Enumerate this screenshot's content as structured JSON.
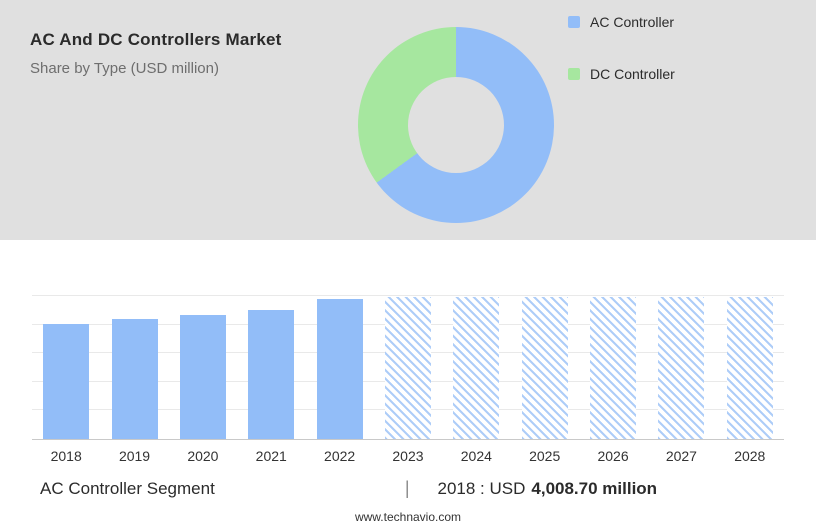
{
  "header": {
    "title": "AC And DC Controllers Market",
    "subtitle": "Share by Type (USD million)"
  },
  "legend": {
    "items": [
      {
        "label": "AC Controller",
        "color": "#92bdf8"
      },
      {
        "label": "DC Controller",
        "color": "#a6e79f"
      }
    ]
  },
  "chart_data": [
    {
      "type": "pie",
      "title": "Share by Type (USD million)",
      "labels": [
        "AC Controller",
        "DC Controller"
      ],
      "values": [
        65,
        35
      ],
      "colors": [
        "#92bdf8",
        "#a6e79f"
      ],
      "donut": true,
      "legend_position": "right"
    },
    {
      "type": "bar",
      "title": "AC Controller Segment, historic and forecast",
      "categories": [
        "2018",
        "2019",
        "2020",
        "2021",
        "2022",
        "2023",
        "2024",
        "2025",
        "2026",
        "2027",
        "2028"
      ],
      "values": [
        4008.7,
        4210,
        4350,
        4520,
        4900,
        4950,
        4950,
        4950,
        4950,
        4950,
        4950
      ],
      "forecast_from_index": 5,
      "bar_color": "#92bdf8",
      "forecast_style": "hatched-placeholder",
      "xlabel": "",
      "ylabel": "USD million",
      "ylim": [
        0,
        5000
      ],
      "gridline_step": 1000,
      "grid": true,
      "legend_position": "none"
    }
  ],
  "caption": {
    "segment": "AC Controller Segment",
    "separator": "|",
    "prefix": "2018 : USD",
    "value": "4,008.70 million"
  },
  "footer": {
    "website": "www.technavio.com"
  }
}
